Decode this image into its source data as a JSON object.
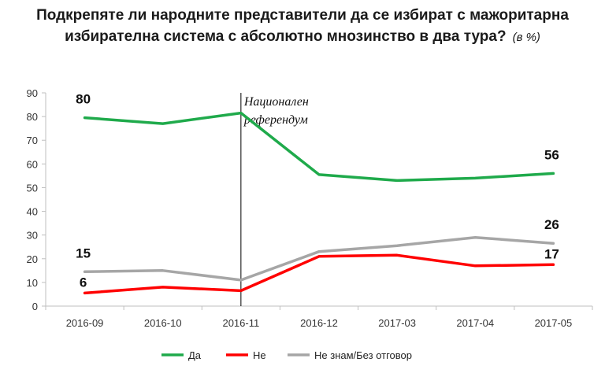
{
  "chart_data": {
    "type": "line",
    "title": "Подкрепяте ли народните представители да се избират с мажоритарна избирателна система с абсолютно мнозинство в два тура?",
    "unit_note": "(в %)",
    "categories": [
      "2016-09",
      "2016-10",
      "2016-11",
      "2016-12",
      "2017-03",
      "2017-04",
      "2017-05"
    ],
    "ylim": [
      0,
      90
    ],
    "yticks": [
      0,
      10,
      20,
      30,
      40,
      50,
      60,
      70,
      80,
      90
    ],
    "grid": false,
    "legend_position": "bottom",
    "series": [
      {
        "name": "Да",
        "color": "#1faa4b",
        "values": [
          79.5,
          77,
          81.5,
          55.5,
          53,
          54,
          56
        ]
      },
      {
        "name": "Не",
        "color": "#ff0000",
        "values": [
          5.5,
          8,
          6.5,
          21,
          21.5,
          17,
          17.5
        ]
      },
      {
        "name": "Не знам/Без отговор",
        "color": "#a6a6a6",
        "values": [
          14.5,
          15,
          11,
          23,
          25.5,
          29,
          26.5
        ]
      }
    ],
    "data_labels": [
      {
        "text": "80",
        "series": 0,
        "index": 0
      },
      {
        "text": "56",
        "series": 0,
        "index": 6
      },
      {
        "text": "15",
        "series": 2,
        "index": 0
      },
      {
        "text": "6",
        "series": 1,
        "index": 0
      },
      {
        "text": "26",
        "series": 2,
        "index": 6
      },
      {
        "text": "17",
        "series": 1,
        "index": 6
      }
    ],
    "annotation": {
      "text_lines": [
        "Национален",
        "референдум"
      ],
      "at_category": "2016-11"
    }
  }
}
